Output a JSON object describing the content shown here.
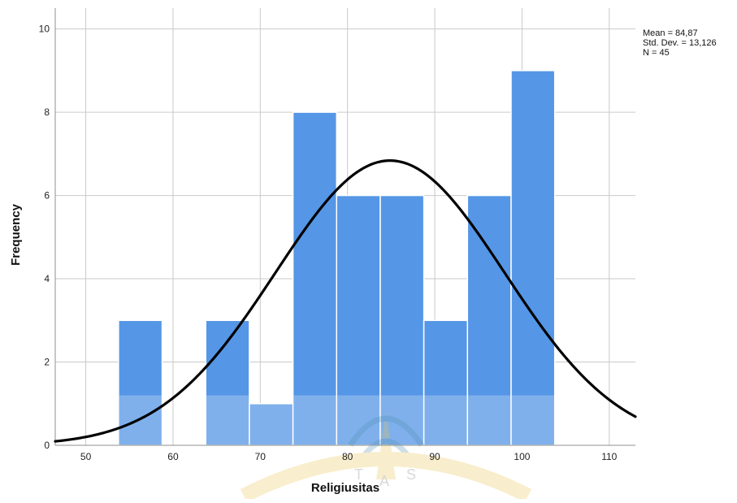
{
  "chart_data": {
    "type": "bar",
    "xlabel": "Religiusitas",
    "ylabel": "Frequency",
    "xlim": [
      46.5,
      113
    ],
    "ylim": [
      0,
      10.5
    ],
    "x_ticks": [
      50,
      60,
      70,
      80,
      90,
      100,
      110
    ],
    "y_ticks": [
      0,
      2,
      4,
      6,
      8,
      10
    ],
    "bins": [
      {
        "start": 53.75,
        "end": 58.75,
        "value": 3
      },
      {
        "start": 58.75,
        "end": 63.75,
        "value": 0
      },
      {
        "start": 63.75,
        "end": 68.75,
        "value": 3
      },
      {
        "start": 68.75,
        "end": 73.75,
        "value": 1
      },
      {
        "start": 73.75,
        "end": 78.75,
        "value": 8
      },
      {
        "start": 78.75,
        "end": 83.75,
        "value": 6
      },
      {
        "start": 83.75,
        "end": 88.75,
        "value": 6
      },
      {
        "start": 88.75,
        "end": 93.75,
        "value": 3
      },
      {
        "start": 93.75,
        "end": 98.75,
        "value": 6
      },
      {
        "start": 98.75,
        "end": 103.75,
        "value": 9
      }
    ],
    "normal_curve": {
      "mean": 84.87,
      "std_dev": 13.126,
      "n": 45,
      "bin_width": 5
    },
    "stats_lines": [
      "Mean = 84,87",
      "Std. Dev. = 13,126",
      "N = 45"
    ],
    "grid": true,
    "legend": "none"
  },
  "colors": {
    "bar": "#5596e6",
    "curve": "#000000",
    "grid": "#c9c9c9",
    "watermark": "#e8c24a"
  }
}
